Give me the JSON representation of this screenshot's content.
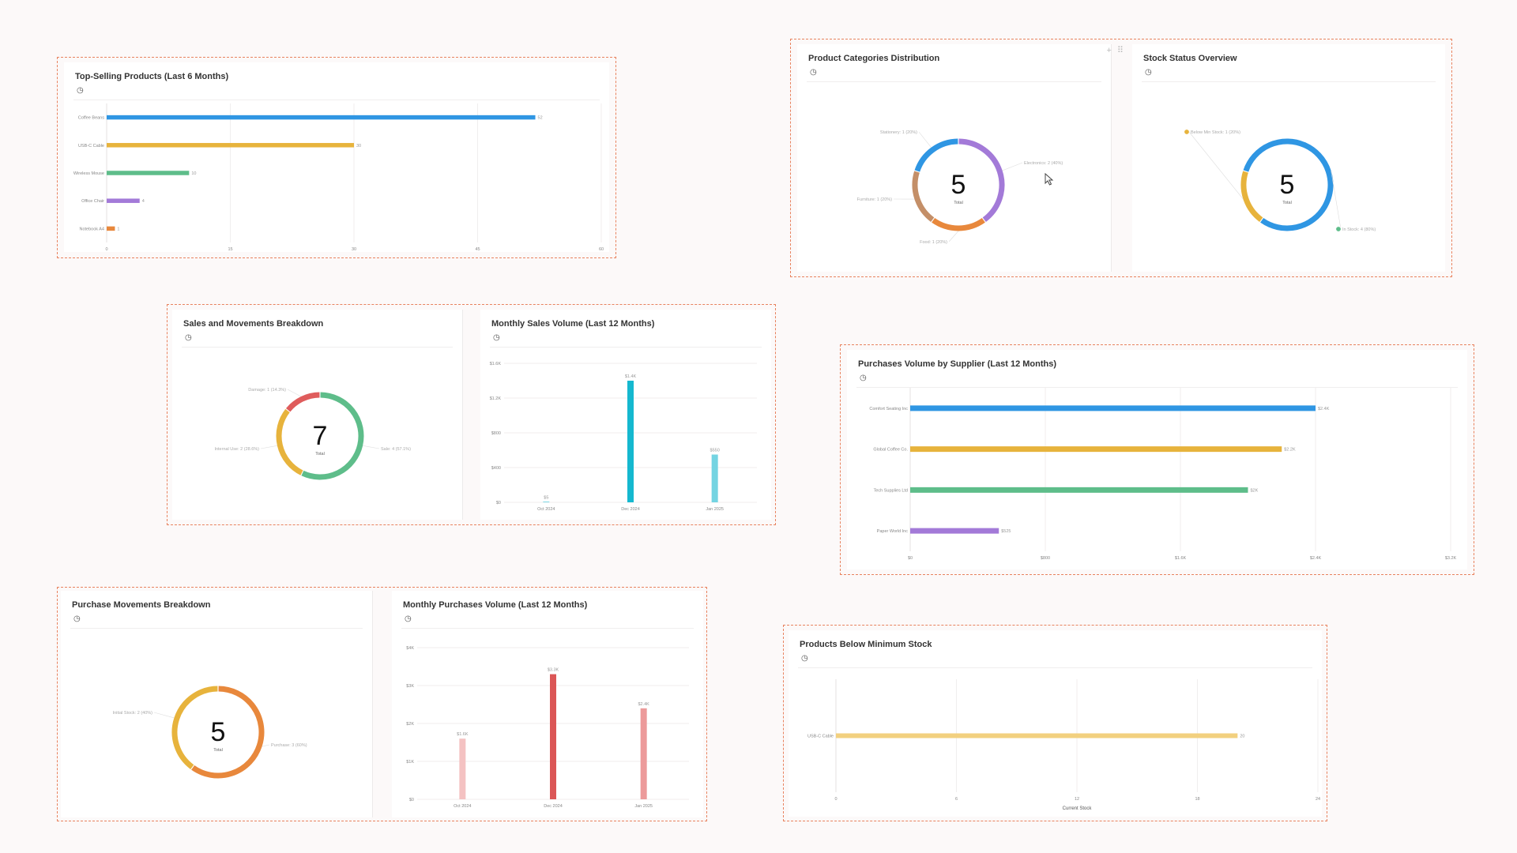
{
  "icons": {
    "clock": "clock-icon",
    "add": "plus-icon",
    "drag": "drag-handle-icon",
    "cursor": "cursor-icon"
  },
  "colors": {
    "blue": "#2f96e3",
    "yellow": "#e7b33c",
    "green": "#5ebd8a",
    "purple": "#a37ad8",
    "orange": "#e8883c",
    "brown": "#c48f68",
    "red": "#df5c5c",
    "cyan": "#15b8cf",
    "light_cyan": "#74d4e2",
    "pink_light": "#f4c2c2",
    "red_mid": "#ec9a9a",
    "red_dark": "#db5656",
    "pale_yellow": "#f2d07f",
    "group_border": "#e8825e"
  },
  "widgets": {
    "top_selling": {
      "title": "Top-Selling Products (Last 6 Months)"
    },
    "categories": {
      "title": "Product Categories Distribution",
      "total_label": "Total"
    },
    "stock_status": {
      "title": "Stock Status Overview",
      "total_label": "Total"
    },
    "sales_breakdown": {
      "title": "Sales and Movements Breakdown",
      "total_label": "Total"
    },
    "monthly_sales": {
      "title": "Monthly Sales Volume (Last 12 Months)"
    },
    "purchases_supplier": {
      "title": "Purchases Volume by Supplier (Last 12 Months)"
    },
    "purchase_breakdown": {
      "title": "Purchase Movements Breakdown",
      "total_label": "Total"
    },
    "monthly_purchases": {
      "title": "Monthly Purchases Volume (Last 12 Months)"
    },
    "below_min": {
      "title": "Products Below Minimum Stock"
    }
  },
  "chart_data": [
    {
      "id": "top_selling",
      "type": "bar",
      "orientation": "horizontal",
      "categories": [
        "Coffee Beans",
        "USB-C Cable",
        "Wireless Mouse",
        "Office Chair",
        "Notebook A4"
      ],
      "values": [
        52,
        30,
        10,
        4,
        1
      ],
      "value_labels": [
        "52",
        "30",
        "10",
        "4",
        "1"
      ],
      "colors": [
        "#2f96e3",
        "#e7b33c",
        "#5ebd8a",
        "#a37ad8",
        "#e8883c"
      ],
      "xlim": [
        0,
        60
      ],
      "xticks": [
        "0",
        "15",
        "30",
        "45",
        "60"
      ],
      "grid": true
    },
    {
      "id": "categories",
      "type": "pie",
      "donut": true,
      "total": "5",
      "slices": [
        {
          "label": "Electronics: 2 (40%)",
          "value": 2,
          "color": "#a37ad8"
        },
        {
          "label": "Food: 1 (20%)",
          "value": 1,
          "color": "#e8883c"
        },
        {
          "label": "Furniture: 1 (20%)",
          "value": 1,
          "color": "#c48f68"
        },
        {
          "label": "Stationery: 1 (20%)",
          "value": 1,
          "color": "#2f96e3"
        }
      ]
    },
    {
      "id": "stock_status",
      "type": "pie",
      "donut": true,
      "total": "5",
      "slices": [
        {
          "label": "In Stock: 4 (80%)",
          "value": 4,
          "color": "#2f96e3"
        },
        {
          "label": "Below Min Stock: 1 (20%)",
          "value": 1,
          "color": "#e7b33c"
        }
      ],
      "legend_dots": [
        "#e7b33c",
        "#5ebd8a"
      ]
    },
    {
      "id": "sales_breakdown",
      "type": "pie",
      "donut": true,
      "total": "7",
      "slices": [
        {
          "label": "Sale: 4 (57.1%)",
          "value": 4,
          "color": "#5ebd8a"
        },
        {
          "label": "Internal Use: 2 (28.6%)",
          "value": 2,
          "color": "#e7b33c"
        },
        {
          "label": "Damage: 1 (14.3%)",
          "value": 1,
          "color": "#df5c5c"
        }
      ]
    },
    {
      "id": "monthly_sales",
      "type": "bar",
      "categories": [
        "Oct 2024",
        "Dec 2024",
        "Jan 2025"
      ],
      "values": [
        5,
        1400,
        550
      ],
      "value_labels": [
        "$5",
        "$1.4K",
        "$550"
      ],
      "colors": [
        "#15b8cf",
        "#15b8cf",
        "#74d4e2"
      ],
      "ylim": [
        0,
        1600
      ],
      "yticks": [
        "$0",
        "$400",
        "$800",
        "$1.2K",
        "$1.6K"
      ],
      "grid": true
    },
    {
      "id": "purchases_supplier",
      "type": "bar",
      "orientation": "horizontal",
      "categories": [
        "Comfort Seating Inc",
        "Global Coffee Co.",
        "Tech Supplies Ltd",
        "Paper World Inc"
      ],
      "values": [
        2400,
        2200,
        2000,
        525
      ],
      "value_labels": [
        "$2.4K",
        "$2.2K",
        "$2K",
        "$525"
      ],
      "colors": [
        "#2f96e3",
        "#e7b33c",
        "#5ebd8a",
        "#a37ad8"
      ],
      "xlim": [
        0,
        3200
      ],
      "xticks": [
        "$0",
        "$800",
        "$1.6K",
        "$2.4K",
        "$3.2K"
      ],
      "grid": true
    },
    {
      "id": "purchase_breakdown",
      "type": "pie",
      "donut": true,
      "total": "5",
      "slices": [
        {
          "label": "Purchase: 3 (60%)",
          "value": 3,
          "color": "#e8883c"
        },
        {
          "label": "Initial Stock: 2 (40%)",
          "value": 2,
          "color": "#e7b33c"
        }
      ]
    },
    {
      "id": "monthly_purchases",
      "type": "bar",
      "categories": [
        "Oct 2024",
        "Dec 2024",
        "Jan 2025"
      ],
      "values": [
        1600,
        3300,
        2400
      ],
      "value_labels": [
        "$1.6K",
        "$3.3K",
        "$2.4K"
      ],
      "colors": [
        "#f4c2c2",
        "#db5656",
        "#ec9a9a"
      ],
      "ylim": [
        0,
        4000
      ],
      "yticks": [
        "$0",
        "$1K",
        "$2K",
        "$3K",
        "$4K"
      ],
      "grid": true
    },
    {
      "id": "below_min",
      "type": "bar",
      "orientation": "horizontal",
      "categories": [
        "USB-C Cable"
      ],
      "values": [
        20
      ],
      "value_labels": [
        "20"
      ],
      "colors": [
        "#f2d07f"
      ],
      "xlim": [
        0,
        24
      ],
      "xticks": [
        "0",
        "6",
        "12",
        "18",
        "24"
      ],
      "xlabel": "Current Stock",
      "grid": true
    }
  ]
}
